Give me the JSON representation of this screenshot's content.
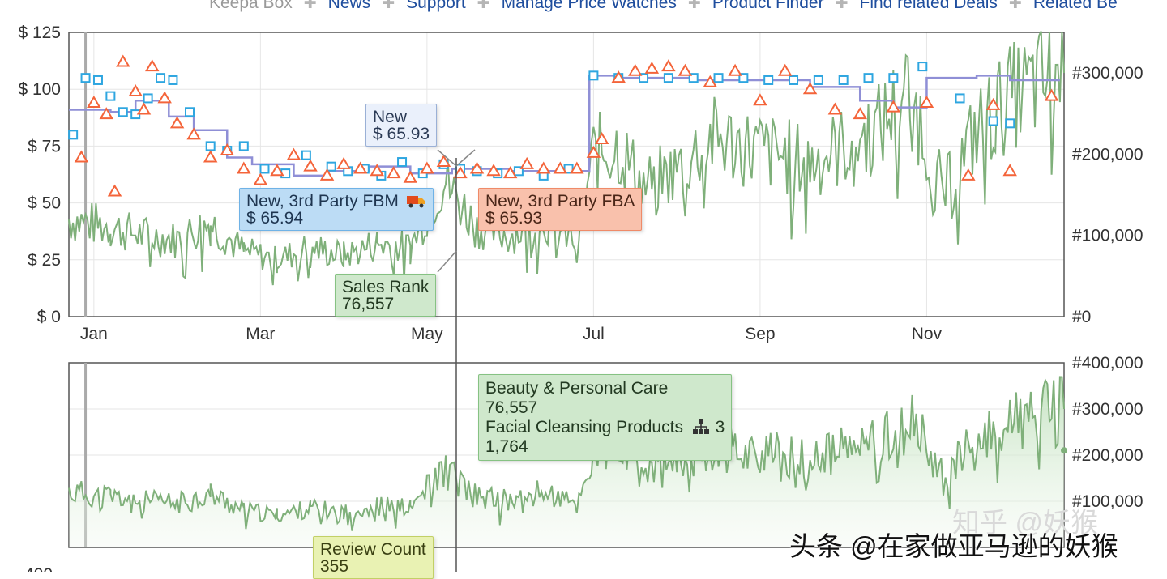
{
  "nav": {
    "items": [
      {
        "label": "Keepa Box",
        "link": false
      },
      {
        "label": "News",
        "link": true
      },
      {
        "label": "Support",
        "link": true
      },
      {
        "label": "Manage Price Watches",
        "link": true
      },
      {
        "label": "Product Finder",
        "link": true
      },
      {
        "label": "Find related Deals",
        "link": true
      },
      {
        "label": "Related Be",
        "link": true
      }
    ],
    "separator": "✚"
  },
  "tooltips": {
    "new": {
      "label": "New",
      "value": "$ 65.93"
    },
    "fbm": {
      "label": "New, 3rd Party FBM",
      "icon": "truck-icon",
      "value": "$ 65.94"
    },
    "fba": {
      "label": "New, 3rd Party FBA",
      "value": "$ 65.93"
    },
    "sales_rank": {
      "label": "Sales Rank",
      "value": "76,557"
    },
    "category": {
      "cat1": "Beauty & Personal Care",
      "cat1_value": "76,557",
      "cat2": "Facial Cleansing Products",
      "cat2_icon": "hierarchy-icon",
      "cat2_suffix": "3",
      "cat2_value": "1,764"
    },
    "review_count": {
      "label": "Review Count",
      "value": "355"
    }
  },
  "watermarks": {
    "main": "头条 @在家做亚马逊的妖猴",
    "faint": "知乎 @妖猴"
  },
  "colors": {
    "new": "#8f8fd6",
    "fbm": "#2ea6e0",
    "fba": "#f4643a",
    "sales_rank": "#7fb07a",
    "grid": "#e6e6e6",
    "axis": "#555555",
    "crosshair": "#555555"
  },
  "chart_data": [
    {
      "type": "line",
      "title": "",
      "x_ticks": [
        "Jan",
        "Mar",
        "May",
        "Jul",
        "Sep",
        "Nov"
      ],
      "y_left_ticks": [
        "$ 0",
        "$ 25",
        "$ 50",
        "$ 75",
        "$ 100",
        "$ 125"
      ],
      "y_left_range": [
        0,
        125
      ],
      "y_right_ticks": [
        "#0",
        "#100,000",
        "#200,000",
        "#300,000"
      ],
      "y_right_range": [
        0,
        350000
      ],
      "x_range": [
        -0.3,
        11.65
      ],
      "grid": true,
      "series": [
        {
          "name": "New",
          "axis": "left",
          "style": "step-line",
          "color": "#8f8fd6",
          "x": [
            -0.3,
            0.2,
            0.5,
            0.9,
            1.2,
            1.6,
            1.9,
            2.4,
            2.8,
            3.3,
            3.8,
            4.3,
            5.0,
            5.8,
            5.95,
            6.3,
            7.2,
            8.0,
            8.6,
            9.2,
            9.6,
            10.0,
            10.6,
            11.0,
            11.6
          ],
          "y": [
            91,
            90,
            95,
            88,
            82,
            70,
            67,
            62,
            64,
            66,
            63,
            65,
            64,
            64,
            106,
            105,
            104,
            104,
            101,
            95,
            92,
            105,
            106,
            104,
            104
          ]
        },
        {
          "name": "New, 3rd Party FBM",
          "axis": "left",
          "style": "square-markers",
          "color": "#2ea6e0",
          "x": [
            -0.25,
            -0.1,
            0.05,
            0.2,
            0.35,
            0.5,
            0.65,
            0.8,
            0.95,
            1.15,
            1.4,
            1.6,
            1.8,
            2.05,
            2.3,
            2.55,
            2.85,
            3.05,
            3.25,
            3.45,
            3.7,
            3.95,
            4.2,
            4.4,
            4.6,
            4.85,
            5.1,
            5.4,
            5.7,
            6.0,
            6.3,
            6.6,
            6.9,
            7.2,
            7.5,
            7.8,
            8.1,
            8.4,
            8.7,
            9.0,
            9.3,
            9.6,
            9.95,
            10.4,
            10.8,
            11.0
          ],
          "y": [
            80,
            105,
            104,
            97,
            90,
            89,
            96,
            105,
            104,
            90,
            75,
            73,
            75,
            65,
            63,
            71,
            66,
            64,
            65,
            62,
            68,
            63,
            67,
            65,
            64,
            63,
            64,
            62,
            65,
            106,
            105,
            105,
            105,
            105,
            105,
            105,
            104,
            104,
            104,
            104,
            105,
            105,
            110,
            96,
            86,
            85
          ]
        },
        {
          "name": "New, 3rd Party FBA",
          "axis": "left",
          "style": "triangle-markers",
          "color": "#f4643a",
          "x": [
            -0.15,
            0.0,
            0.15,
            0.25,
            0.35,
            0.5,
            0.6,
            0.7,
            0.85,
            1.0,
            1.2,
            1.4,
            1.6,
            1.8,
            2.0,
            2.2,
            2.4,
            2.6,
            2.8,
            3.0,
            3.2,
            3.4,
            3.6,
            3.8,
            4.0,
            4.2,
            4.4,
            4.6,
            4.8,
            5.0,
            5.2,
            5.4,
            5.6,
            5.8,
            6.0,
            6.1,
            6.3,
            6.5,
            6.7,
            6.9,
            7.1,
            7.4,
            7.7,
            8.0,
            8.3,
            8.6,
            8.9,
            9.2,
            9.6,
            10.0,
            10.5,
            10.8,
            11.0,
            11.5
          ],
          "y": [
            70,
            94,
            89,
            55,
            112,
            99,
            91,
            110,
            96,
            85,
            80,
            70,
            73,
            65,
            60,
            64,
            71,
            66,
            62,
            67,
            65,
            64,
            63,
            61,
            65,
            68,
            63,
            65,
            64,
            63,
            67,
            65,
            65,
            65,
            72,
            78,
            105,
            108,
            109,
            110,
            108,
            103,
            108,
            95,
            108,
            100,
            91,
            89,
            92,
            94,
            62,
            93,
            64,
            97
          ]
        },
        {
          "name": "Sales Rank",
          "axis": "right",
          "style": "line",
          "color": "#7fb07a",
          "x": [
            -0.3,
            0.2,
            0.6,
            1.0,
            1.4,
            1.8,
            2.2,
            2.6,
            3.0,
            3.4,
            3.8,
            4.2,
            4.6,
            5.0,
            5.4,
            5.8,
            6.0,
            6.3,
            6.6,
            7.0,
            7.4,
            7.8,
            8.2,
            8.6,
            9.0,
            9.4,
            9.8,
            10.2,
            10.6,
            11.0,
            11.4,
            11.65
          ],
          "y": [
            120000,
            110000,
            100000,
            95000,
            115000,
            80000,
            70000,
            85000,
            75000,
            90000,
            85000,
            170000,
            110000,
            100000,
            120000,
            90000,
            200000,
            210000,
            160000,
            180000,
            220000,
            210000,
            200000,
            190000,
            210000,
            230000,
            280000,
            150000,
            230000,
            270000,
            290000,
            300000
          ]
        }
      ]
    },
    {
      "type": "area",
      "title": "",
      "y_right_ticks": [
        "#100,000",
        "#200,000",
        "#300,000",
        "#400,000"
      ],
      "y_right_range": [
        0,
        400000
      ],
      "x_range": [
        -0.3,
        11.65
      ],
      "series": [
        {
          "name": "Beauty & Personal Care",
          "color": "#7fb07a",
          "x": [
            -0.3,
            0.2,
            0.6,
            1.0,
            1.4,
            1.8,
            2.2,
            2.6,
            3.0,
            3.4,
            3.8,
            4.2,
            4.6,
            5.0,
            5.4,
            5.8,
            6.0,
            6.3,
            6.6,
            7.0,
            7.4,
            7.8,
            8.2,
            8.6,
            9.0,
            9.4,
            9.8,
            10.2,
            10.6,
            11.0,
            11.4,
            11.65
          ],
          "y": [
            120000,
            110000,
            100000,
            95000,
            115000,
            80000,
            70000,
            85000,
            75000,
            90000,
            85000,
            170000,
            110000,
            100000,
            120000,
            90000,
            200000,
            210000,
            160000,
            180000,
            220000,
            210000,
            200000,
            190000,
            210000,
            230000,
            280000,
            150000,
            230000,
            270000,
            290000,
            300000
          ]
        }
      ]
    }
  ]
}
